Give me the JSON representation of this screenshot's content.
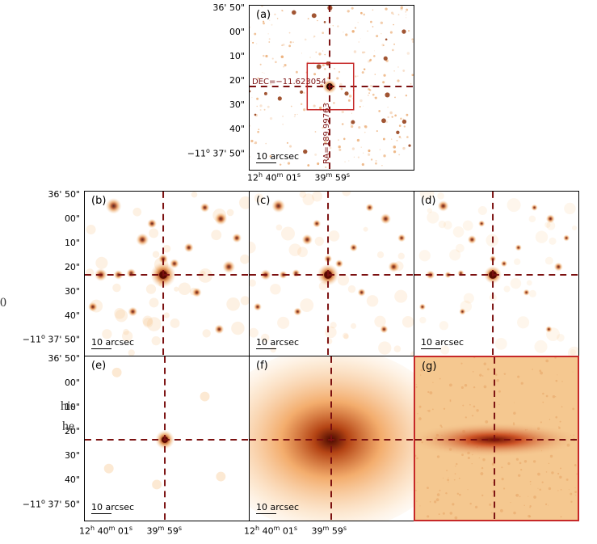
{
  "panels": [
    {
      "id": "a",
      "label": "(a)",
      "scale": "10 arcsec",
      "style": "stars",
      "border": "black"
    },
    {
      "id": "b",
      "label": "(b)",
      "scale": "10 arcsec",
      "style": "stars",
      "border": "black"
    },
    {
      "id": "c",
      "label": "(c)",
      "scale": "10 arcsec",
      "style": "stars",
      "border": "black"
    },
    {
      "id": "d",
      "label": "(d)",
      "scale": "10 arcsec",
      "style": "stars",
      "border": "black"
    },
    {
      "id": "e",
      "label": "(e)",
      "scale": "10 arcsec",
      "style": "sparse",
      "border": "black"
    },
    {
      "id": "f",
      "label": "(f)",
      "scale": "10 arcsec",
      "style": "halo",
      "border": "black"
    },
    {
      "id": "g",
      "label": "(g)",
      "scale": "",
      "style": "smear",
      "border": "#c62828"
    }
  ],
  "yticks": {
    "first": "36' 50\"",
    "mid": [
      "00\"",
      "10\"",
      "20\"",
      "30\"",
      "40\""
    ],
    "last_prefix": "−11",
    "last_deg": "o",
    "last_suffix": " 37' 50\""
  },
  "xticks": {
    "h": "12",
    "h_unit": "h",
    "m": "40",
    "m_unit": "m",
    "s1": "01",
    "s1_unit": "s",
    "m2": "39",
    "m2_unit": "m",
    "s2": "59",
    "s2_unit": "s"
  },
  "annotations": {
    "dec": "DEC=−11.623054",
    "ra": "RA=189.99763"
  },
  "sidetext": [
    "0",
    "his",
    "he"
  ],
  "colors": {
    "accent": "#7b1010",
    "box": "#c62828",
    "core": "#5a0a00"
  }
}
